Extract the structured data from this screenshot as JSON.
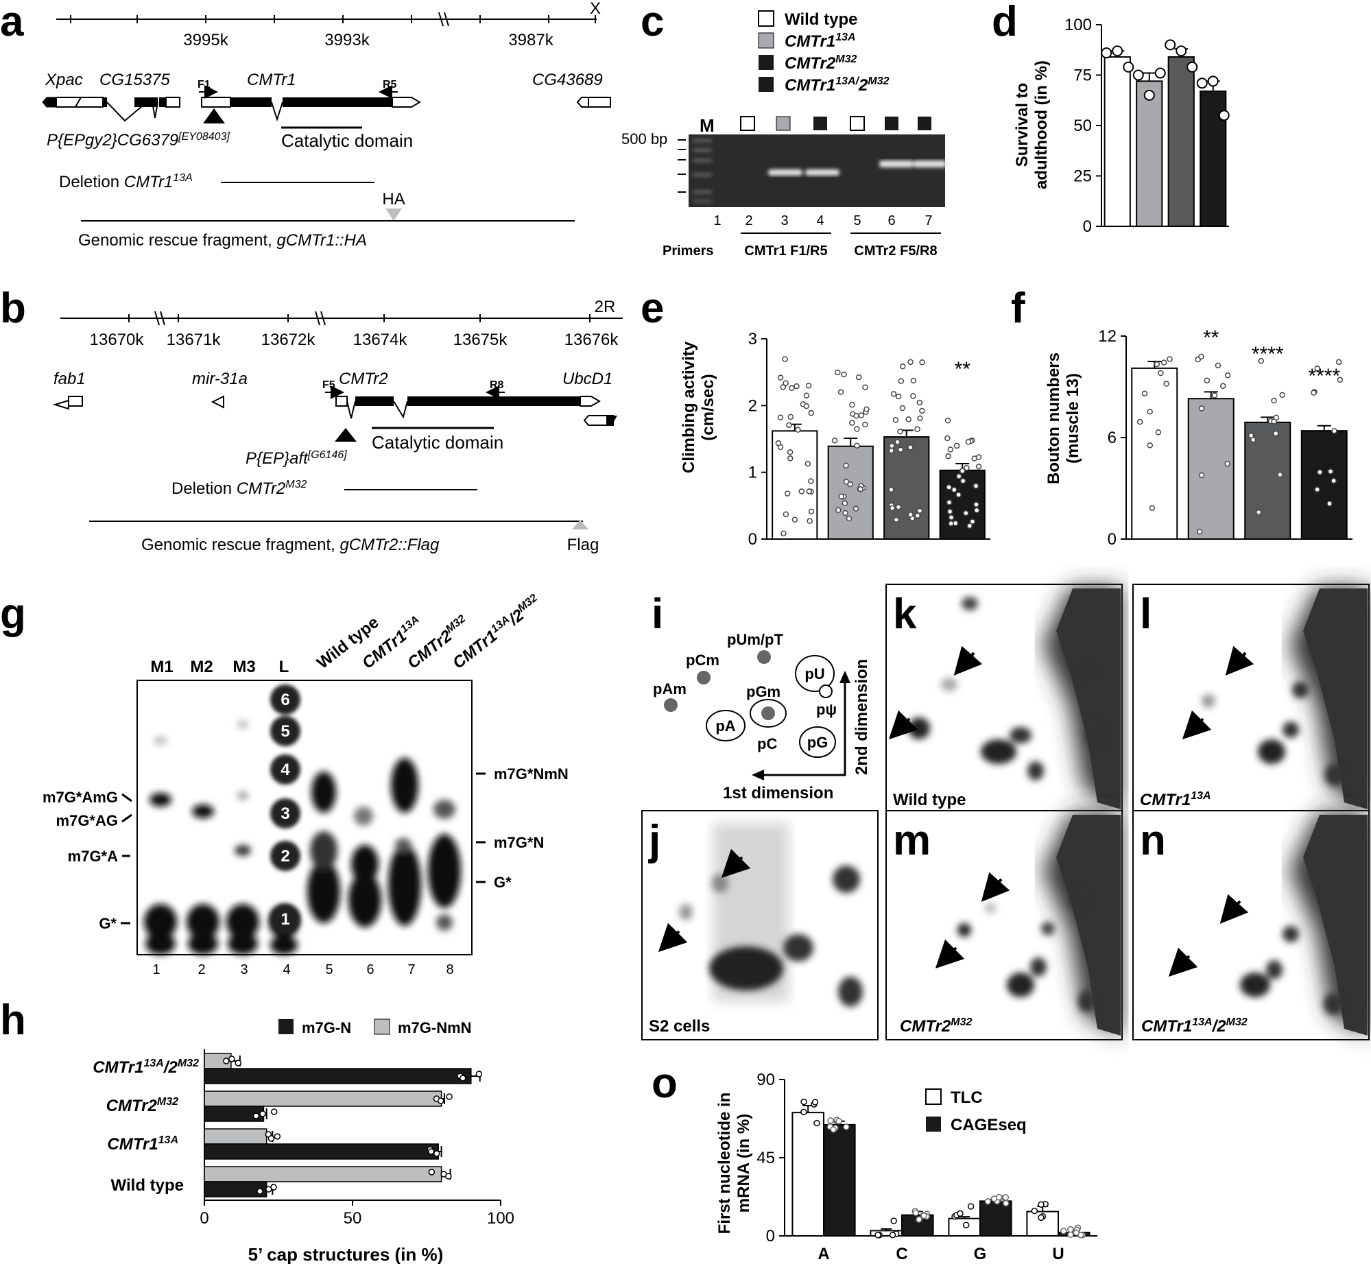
{
  "panel_labels": {
    "a": "a",
    "b": "b",
    "c": "c",
    "d": "d",
    "e": "e",
    "f": "f",
    "g": "g",
    "h": "h",
    "i": "i",
    "j": "j",
    "k": "k",
    "l": "l",
    "m": "m",
    "n": "n",
    "o": "o"
  },
  "panel_a": {
    "chromosome": "X",
    "ticks": [
      "3995k",
      "3993k",
      "3987k"
    ],
    "genes": [
      "Xpac",
      "CG15375",
      "CMTr1",
      "CG43689"
    ],
    "primers": [
      "F1",
      "R5"
    ],
    "insertion": "P{EPgy2}CG6379",
    "insertion_sup": "[EY08403]",
    "domain": "Catalytic domain",
    "deletion_label": "Deletion ",
    "deletion_allele": "CMTr1",
    "deletion_sup": "13A",
    "tag": "HA",
    "rescue": "Genomic rescue fragment, ",
    "rescue_italic": "gCMTr1::HA"
  },
  "panel_b": {
    "chromosome": "2R",
    "ticks": [
      "13670k",
      "13671k",
      "13672k",
      "13674k",
      "13675k",
      "13676k"
    ],
    "genes": [
      "fab1",
      "mir-31a",
      "CMTr2",
      "UbcD1"
    ],
    "primers": [
      "F5",
      "R8"
    ],
    "insertion": "P{EP}aft",
    "insertion_sup": "[G6146]",
    "domain": "Catalytic domain",
    "deletion_label": "Deletion ",
    "deletion_allele": "CMTr2",
    "deletion_sup": "M32",
    "tag": "Flag",
    "rescue": "Genomic rescue fragment, ",
    "rescue_italic": "gCMTr2::Flag"
  },
  "legend_genotypes": [
    {
      "name": "Wild type",
      "sup": "",
      "color": "#ffffff"
    },
    {
      "name": "CMTr1",
      "sup": "13A",
      "color": "#a7a9ac"
    },
    {
      "name": "CMTr2",
      "sup": "M32",
      "color": "#58595b"
    },
    {
      "name": "CMTr1",
      "sup": "13A/",
      "name2": "2",
      "sup2": "M32",
      "color": "#1a1a1a"
    }
  ],
  "panel_c": {
    "marker_label": "M",
    "size_label": "500 bp",
    "lanes": [
      "1",
      "2",
      "3",
      "4",
      "5",
      "6",
      "7"
    ],
    "primers_label": "Primers",
    "group1": "CMTr1 F1/R5",
    "group2": "CMTr2 F5/R8"
  },
  "panel_d": {
    "ylabel_line1": "Survival to",
    "ylabel_line2": "adulthood (in %)",
    "yticks": [
      "100",
      "75",
      "50",
      "25",
      "0"
    ]
  },
  "panel_e": {
    "ylabel_line1": "Climbing activity",
    "ylabel_line2": "(cm/sec)",
    "yticks": [
      "3",
      "2",
      "1",
      "0"
    ],
    "sig": "**"
  },
  "panel_f": {
    "ylabel_line1": "Bouton numbers",
    "ylabel_line2": "(muscle 13)",
    "yticks": [
      "12",
      "6",
      "0"
    ],
    "sig": [
      "**",
      "****",
      "****"
    ]
  },
  "panel_g": {
    "top_lanes": [
      "M1",
      "M2",
      "M3",
      "L"
    ],
    "column_labels": [
      "Wild type",
      "CMTr1",
      "CMTr2",
      "CMTr1"
    ],
    "column_sups": [
      "",
      "13A",
      "M32",
      "13A"
    ],
    "column_extra": [
      "",
      "",
      "",
      "/2"
    ],
    "column_extra_sup": "M32",
    "ladder": [
      "6",
      "5",
      "4",
      "3",
      "2",
      "1"
    ],
    "lanes": [
      "1",
      "2",
      "3",
      "4",
      "5",
      "6",
      "7",
      "8"
    ],
    "left_labels": [
      "m7G*AmG",
      "m7G*AG",
      "m7G*A",
      "G*"
    ],
    "right_labels": [
      "m7G*NmN",
      "m7G*N",
      "G*"
    ]
  },
  "panel_h": {
    "legend": [
      "m7G-N",
      "m7G-NmN"
    ],
    "xlabel": "5’ cap structures (in %)",
    "xticks": [
      "0",
      "50",
      "100"
    ]
  },
  "panel_i": {
    "spots": [
      "pUm/pT",
      "pU",
      "pCm",
      "pAm",
      "pGm",
      "pA",
      "pC",
      "pG",
      "pψ"
    ],
    "axis_1st": "1st dimension",
    "axis_2nd": "2nd dimension"
  },
  "tlc_labels": {
    "j": "S2 cells",
    "k": "Wild type",
    "l": "CMTr1",
    "l_sup": "13A",
    "m": "CMTr2",
    "m_sup": "M32",
    "n": "CMTr1",
    "n_sup": "13A",
    "n_extra": "/2",
    "n_extra_sup": "M32"
  },
  "panel_o": {
    "ylabel_line1": "First nucleotide in",
    "ylabel_line2": "mRNA (in %)",
    "yticks": [
      "90",
      "45",
      "0"
    ],
    "legend": [
      "TLC",
      "CAGEseq"
    ]
  },
  "chart_data": [
    {
      "panel": "d",
      "type": "bar",
      "categories": [
        "Wild type",
        "CMTr1 13A",
        "CMTr2 M32",
        "CMTr1 13A/2 M32"
      ],
      "values": [
        84,
        72,
        84,
        67
      ],
      "errors": [
        3,
        4,
        4,
        5
      ],
      "ylabel": "Survival to adulthood (in %)",
      "ylim": [
        0,
        100
      ],
      "points": [
        [
          86,
          87,
          79
        ],
        [
          75,
          65,
          76
        ],
        [
          90,
          87,
          79
        ],
        [
          71,
          72,
          55
        ]
      ]
    },
    {
      "panel": "e",
      "type": "bar",
      "categories": [
        "Wild type",
        "CMTr1 13A",
        "CMTr2 M32",
        "CMTr1 13A/2 M32"
      ],
      "values": [
        1.62,
        1.39,
        1.53,
        1.03
      ],
      "errors": [
        0.1,
        0.12,
        0.1,
        0.1
      ],
      "ylabel": "Climbing activity (cm/sec)",
      "ylim": [
        0,
        3
      ]
    },
    {
      "panel": "f",
      "type": "bar",
      "categories": [
        "Wild type",
        "CMTr1 13A",
        "CMTr2 M32",
        "CMTr1 13A/2 M32"
      ],
      "values": [
        10.1,
        8.3,
        6.9,
        6.4
      ],
      "errors": [
        0.4,
        0.4,
        0.3,
        0.3
      ],
      "ylabel": "Bouton numbers (muscle 13)",
      "ylim": [
        0,
        12
      ]
    },
    {
      "panel": "h",
      "type": "bar",
      "orientation": "horizontal",
      "categories": [
        "CMTr1 13A/2 M32",
        "CMTr2 M32",
        "CMTr1 13A",
        "Wild type"
      ],
      "xlabel": "5’ cap structures (in %)",
      "xlim": [
        0,
        100
      ],
      "series": [
        {
          "name": "m7G-N",
          "values": [
            90,
            20,
            79,
            21
          ],
          "errors": [
            3,
            1,
            1,
            2
          ]
        },
        {
          "name": "m7G-NmN",
          "values": [
            9,
            80,
            21,
            80
          ],
          "errors": [
            3,
            1,
            2,
            3
          ]
        }
      ]
    },
    {
      "panel": "o",
      "type": "bar",
      "categories": [
        "A",
        "C",
        "G",
        "U"
      ],
      "ylabel": "First nucleotide in mRNA (in %)",
      "ylim": [
        0,
        90
      ],
      "series": [
        {
          "name": "TLC",
          "values": [
            71,
            3,
            10,
            14
          ],
          "errors": [
            4,
            1,
            1,
            3
          ]
        },
        {
          "name": "CAGEseq",
          "values": [
            64,
            12,
            20,
            2
          ],
          "errors": [
            2,
            2,
            1,
            1
          ]
        }
      ]
    }
  ]
}
